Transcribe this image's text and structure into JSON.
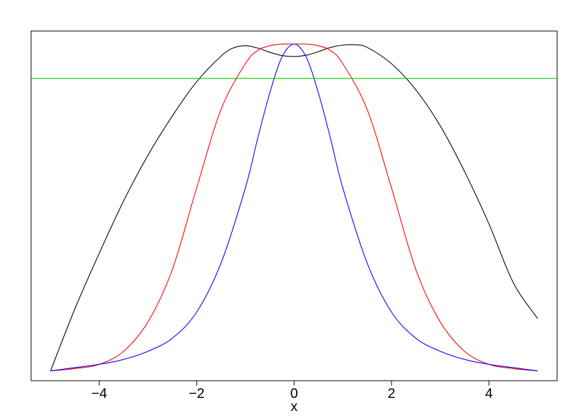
{
  "chart_data": {
    "type": "line",
    "title": "",
    "xlabel": "x",
    "ylabel": "",
    "xlim": [
      -5.4,
      5.4
    ],
    "ylim": [
      -0.03,
      1.04
    ],
    "x_ticks": [
      -4,
      -2,
      0,
      2,
      4
    ],
    "x_tick_labels": [
      "−4",
      "−2",
      "0",
      "2",
      "4"
    ],
    "y_ticks": [],
    "grid": false,
    "legend": "none",
    "series": [
      {
        "color": "#000000",
        "x": [
          -5,
          -4.5,
          -4,
          -3.5,
          -3,
          -2.5,
          -2,
          -1.5,
          -1.25,
          -1,
          -0.75,
          -0.5,
          -0.25,
          0,
          0.25,
          0.5,
          0.75,
          1,
          1.25,
          1.5,
          2,
          2.5,
          3,
          3.5,
          4,
          4.5,
          5
        ],
        "y": [
          0.0,
          0.19,
          0.36,
          0.52,
          0.66,
          0.78,
          0.885,
          0.963,
          0.988,
          0.995,
          0.988,
          0.975,
          0.965,
          0.962,
          0.966,
          0.977,
          0.99,
          0.997,
          0.998,
          0.99,
          0.94,
          0.86,
          0.75,
          0.61,
          0.45,
          0.27,
          0.16
        ]
      },
      {
        "color": "#ff0000",
        "x": [
          -5,
          -4.5,
          -4,
          -3.5,
          -3,
          -2.5,
          -2,
          -1.5,
          -1,
          -0.75,
          -0.5,
          -0.25,
          0,
          0.25,
          0.5,
          0.75,
          1,
          1.5,
          2,
          2.5,
          3,
          3.5,
          4,
          4.5,
          5
        ],
        "y": [
          0.0,
          0.007,
          0.02,
          0.06,
          0.15,
          0.31,
          0.56,
          0.8,
          0.94,
          0.98,
          0.995,
          1.0,
          1.0,
          1.0,
          0.995,
          0.98,
          0.94,
          0.8,
          0.56,
          0.31,
          0.15,
          0.06,
          0.02,
          0.007,
          0.0
        ]
      },
      {
        "color": "#0000ff",
        "x": [
          -5,
          -4.5,
          -4,
          -3.5,
          -3,
          -2.5,
          -2,
          -1.5,
          -1,
          -0.75,
          -0.5,
          -0.25,
          0,
          0.25,
          0.5,
          0.75,
          1,
          1.5,
          2,
          2.5,
          3,
          3.5,
          4,
          4.5,
          5
        ],
        "y": [
          0.0,
          0.01,
          0.02,
          0.035,
          0.06,
          0.1,
          0.18,
          0.33,
          0.56,
          0.71,
          0.85,
          0.96,
          1.0,
          0.96,
          0.85,
          0.71,
          0.56,
          0.33,
          0.18,
          0.1,
          0.06,
          0.035,
          0.02,
          0.01,
          0.0
        ]
      },
      {
        "color": "#00cc00",
        "x": [
          -5.4,
          5.4
        ],
        "y": [
          0.895,
          0.895
        ]
      }
    ]
  }
}
